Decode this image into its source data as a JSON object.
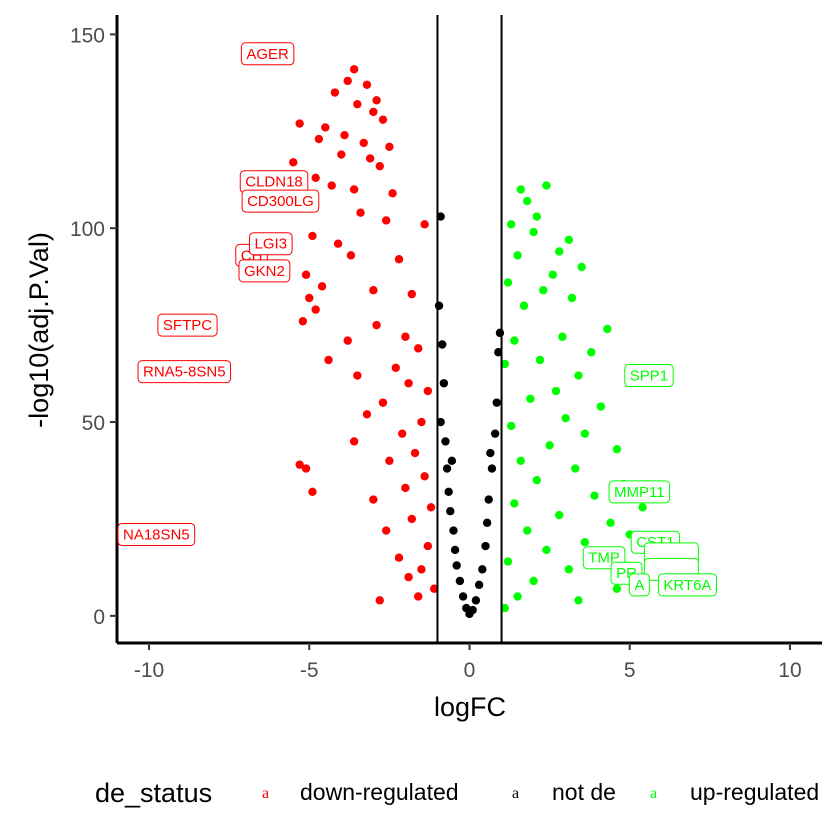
{
  "chart_data": {
    "type": "scatter",
    "title": "",
    "xlabel": "logFC",
    "ylabel": "-log10(adj.P.Val)",
    "xlim": [
      -11,
      11
    ],
    "ylim": [
      -7,
      155
    ],
    "xticks": [
      -10,
      -5,
      0,
      5,
      10
    ],
    "yticks": [
      0,
      50,
      100,
      150
    ],
    "xtick_labels": [
      "-10",
      "-5",
      "0",
      "5",
      "10"
    ],
    "ytick_labels": [
      "0",
      "50",
      "100",
      "150"
    ],
    "grid": false,
    "vlines": [
      -1,
      1
    ],
    "colors": {
      "down": "#ff0000",
      "notde": "#000000",
      "up": "#00ff00"
    },
    "legend": {
      "title": "de_status",
      "position": "bottom",
      "key_glyph": "a",
      "entries": [
        {
          "name": "down-regulated",
          "color": "#ff0000"
        },
        {
          "name": "not de",
          "color": "#000000"
        },
        {
          "name": "up-regulated",
          "color": "#00ff00"
        }
      ]
    },
    "series": [
      {
        "name": "down-regulated",
        "color": "#ff0000",
        "points": [
          [
            -3.6,
            141
          ],
          [
            -3.8,
            138
          ],
          [
            -3.2,
            137
          ],
          [
            -4.2,
            135
          ],
          [
            -2.9,
            133
          ],
          [
            -3.5,
            132
          ],
          [
            -3.0,
            130
          ],
          [
            -2.7,
            128
          ],
          [
            -5.3,
            127
          ],
          [
            -4.5,
            126
          ],
          [
            -3.9,
            124
          ],
          [
            -4.7,
            123
          ],
          [
            -3.3,
            122
          ],
          [
            -2.5,
            121
          ],
          [
            -4.0,
            119
          ],
          [
            -3.1,
            118
          ],
          [
            -2.8,
            116
          ],
          [
            -5.5,
            117
          ],
          [
            -4.8,
            113
          ],
          [
            -4.3,
            111
          ],
          [
            -3.6,
            110
          ],
          [
            -2.4,
            109
          ],
          [
            -5.0,
            106
          ],
          [
            -3.4,
            104
          ],
          [
            -2.6,
            102
          ],
          [
            -1.4,
            101
          ],
          [
            -4.9,
            98
          ],
          [
            -4.1,
            96
          ],
          [
            -5.8,
            95
          ],
          [
            -3.7,
            93
          ],
          [
            -2.2,
            92
          ],
          [
            -5.1,
            88
          ],
          [
            -4.6,
            85
          ],
          [
            -3.0,
            84
          ],
          [
            -1.8,
            83
          ],
          [
            -5.0,
            82
          ],
          [
            -4.8,
            79
          ],
          [
            -5.2,
            76
          ],
          [
            -2.9,
            75
          ],
          [
            -2.0,
            72
          ],
          [
            -3.8,
            71
          ],
          [
            -1.6,
            69
          ],
          [
            -4.4,
            66
          ],
          [
            -2.3,
            64
          ],
          [
            -3.5,
            62
          ],
          [
            -1.9,
            60
          ],
          [
            -1.3,
            58
          ],
          [
            -2.7,
            55
          ],
          [
            -3.2,
            52
          ],
          [
            -1.5,
            50
          ],
          [
            -2.1,
            47
          ],
          [
            -3.6,
            45
          ],
          [
            -1.7,
            42
          ],
          [
            -2.5,
            40
          ],
          [
            -5.3,
            39
          ],
          [
            -5.1,
            38
          ],
          [
            -1.4,
            36
          ],
          [
            -2.0,
            33
          ],
          [
            -4.9,
            32
          ],
          [
            -3.0,
            30
          ],
          [
            -1.2,
            28
          ],
          [
            -1.8,
            25
          ],
          [
            -2.6,
            22
          ],
          [
            -1.3,
            18
          ],
          [
            -2.2,
            15
          ],
          [
            -1.5,
            12
          ],
          [
            -1.9,
            10
          ],
          [
            -1.1,
            7
          ],
          [
            -1.6,
            5
          ],
          [
            -2.8,
            4
          ]
        ]
      },
      {
        "name": "not de",
        "color": "#000000",
        "points": [
          [
            -0.9,
            103
          ],
          [
            -0.95,
            80
          ],
          [
            -0.85,
            70
          ],
          [
            -0.8,
            60
          ],
          [
            -0.9,
            50
          ],
          [
            -0.75,
            45
          ],
          [
            -0.7,
            38
          ],
          [
            -0.65,
            32
          ],
          [
            -0.6,
            27
          ],
          [
            -0.5,
            22
          ],
          [
            -0.45,
            17
          ],
          [
            -0.4,
            13
          ],
          [
            -0.3,
            9
          ],
          [
            -0.2,
            5
          ],
          [
            -0.1,
            2
          ],
          [
            0.0,
            0.5
          ],
          [
            0.1,
            1.5
          ],
          [
            0.2,
            4
          ],
          [
            0.3,
            8
          ],
          [
            0.4,
            12
          ],
          [
            0.5,
            18
          ],
          [
            0.55,
            24
          ],
          [
            0.6,
            30
          ],
          [
            0.7,
            38
          ],
          [
            0.8,
            47
          ],
          [
            0.85,
            55
          ],
          [
            0.9,
            68
          ],
          [
            0.95,
            73
          ],
          [
            -0.55,
            40
          ],
          [
            0.65,
            42
          ]
        ]
      },
      {
        "name": "up-regulated",
        "color": "#00ff00",
        "points": [
          [
            2.4,
            111
          ],
          [
            1.6,
            110
          ],
          [
            1.8,
            107
          ],
          [
            2.1,
            103
          ],
          [
            2.0,
            99
          ],
          [
            1.3,
            101
          ],
          [
            3.1,
            97
          ],
          [
            2.8,
            94
          ],
          [
            1.5,
            93
          ],
          [
            3.5,
            90
          ],
          [
            2.6,
            88
          ],
          [
            1.2,
            86
          ],
          [
            2.3,
            84
          ],
          [
            3.2,
            82
          ],
          [
            1.7,
            80
          ],
          [
            4.3,
            74
          ],
          [
            2.9,
            72
          ],
          [
            1.4,
            71
          ],
          [
            3.8,
            68
          ],
          [
            2.2,
            66
          ],
          [
            1.1,
            65
          ],
          [
            3.4,
            62
          ],
          [
            2.7,
            58
          ],
          [
            1.9,
            56
          ],
          [
            4.1,
            54
          ],
          [
            3.0,
            51
          ],
          [
            1.3,
            49
          ],
          [
            3.6,
            47
          ],
          [
            2.5,
            44
          ],
          [
            4.6,
            43
          ],
          [
            1.6,
            40
          ],
          [
            3.3,
            38
          ],
          [
            2.1,
            35
          ],
          [
            4.8,
            34
          ],
          [
            3.9,
            31
          ],
          [
            1.4,
            29
          ],
          [
            5.4,
            28
          ],
          [
            2.8,
            26
          ],
          [
            4.4,
            24
          ],
          [
            1.8,
            22
          ],
          [
            5.0,
            21
          ],
          [
            3.6,
            19
          ],
          [
            2.4,
            17
          ],
          [
            4.2,
            15
          ],
          [
            1.2,
            14
          ],
          [
            3.1,
            12
          ],
          [
            5.7,
            11
          ],
          [
            2.0,
            9
          ],
          [
            4.6,
            7
          ],
          [
            1.5,
            5
          ],
          [
            3.4,
            4
          ],
          [
            1.1,
            2
          ]
        ]
      }
    ],
    "annotations": [
      {
        "text": "AGER",
        "x": -6.3,
        "y": 145,
        "color": "#ff0000"
      },
      {
        "text": "CLDN18",
        "x": -6.1,
        "y": 112,
        "color": "#ff0000"
      },
      {
        "text": "CD300LG",
        "x": -5.9,
        "y": 107,
        "color": "#ff0000"
      },
      {
        "text": "CH",
        "x": -6.8,
        "y": 93,
        "color": "#ff0000"
      },
      {
        "text": "LGI3",
        "x": -6.2,
        "y": 96,
        "color": "#ff0000"
      },
      {
        "text": "GKN2",
        "x": -6.4,
        "y": 89,
        "color": "#ff0000"
      },
      {
        "text": "SFTPC",
        "x": -8.8,
        "y": 75,
        "color": "#ff0000"
      },
      {
        "text": "RNA5-8SN5",
        "x": -8.9,
        "y": 63,
        "color": "#ff0000"
      },
      {
        "text": "NA18SN5",
        "x": -9.8,
        "y": 21,
        "color": "#ff0000"
      },
      {
        "text": "SPP1",
        "x": 5.6,
        "y": 62,
        "color": "#00ff00"
      },
      {
        "text": "MMP11",
        "x": 5.3,
        "y": 32,
        "color": "#00ff00"
      },
      {
        "text": "CST1",
        "x": 5.8,
        "y": 19,
        "color": "#00ff00"
      },
      {
        "text": "TMP",
        "x": 4.2,
        "y": 15,
        "color": "#00ff00"
      },
      {
        "text": "",
        "x": 6.3,
        "y": 16,
        "color": "#00ff00"
      },
      {
        "text": "PR",
        "x": 4.9,
        "y": 11,
        "color": "#00ff00"
      },
      {
        "text": "",
        "x": 6.3,
        "y": 12,
        "color": "#00ff00"
      },
      {
        "text": "A",
        "x": 5.3,
        "y": 8,
        "color": "#00ff00"
      },
      {
        "text": "KRT6A",
        "x": 6.8,
        "y": 8,
        "color": "#00ff00"
      }
    ]
  }
}
